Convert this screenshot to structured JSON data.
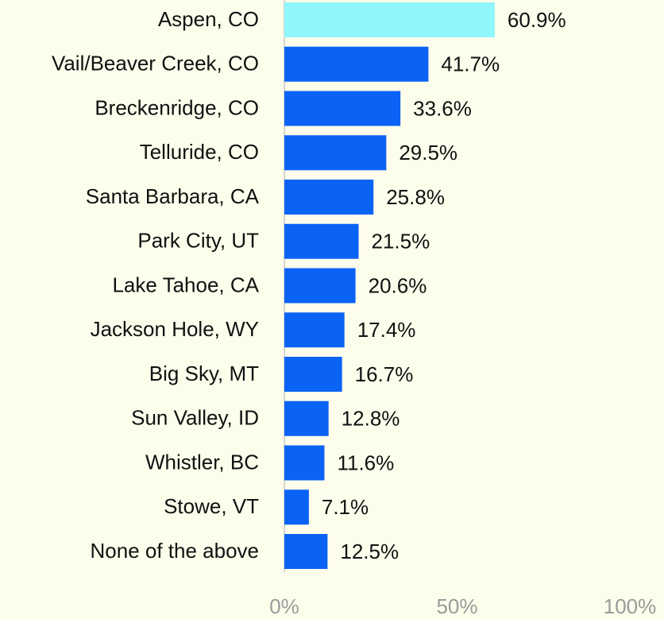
{
  "chart_data": {
    "type": "bar",
    "orientation": "horizontal",
    "categories": [
      "Aspen, CO",
      "Vail/Beaver Creek, CO",
      "Breckenridge, CO",
      "Telluride, CO",
      "Santa Barbara, CA",
      "Park City, UT",
      "Lake Tahoe, CA",
      "Jackson Hole, WY",
      "Big Sky, MT",
      "Sun Valley, ID",
      "Whistler, BC",
      "Stowe, VT",
      "None of the above"
    ],
    "values": [
      60.9,
      41.7,
      33.6,
      29.5,
      25.8,
      21.5,
      20.6,
      17.4,
      16.7,
      12.8,
      11.6,
      7.1,
      12.5
    ],
    "value_labels": [
      "60.9%",
      "41.7%",
      "33.6%",
      "29.5%",
      "25.8%",
      "21.5%",
      "20.6%",
      "17.4%",
      "16.7%",
      "12.8%",
      "11.6%",
      "7.1%",
      "12.5%"
    ],
    "colors": [
      "#8ff6fb",
      "#0a63f5",
      "#0a63f5",
      "#0a63f5",
      "#0a63f5",
      "#0a63f5",
      "#0a63f5",
      "#0a63f5",
      "#0a63f5",
      "#0a63f5",
      "#0a63f5",
      "#0a63f5",
      "#0a63f5"
    ],
    "xlim": [
      0,
      100
    ],
    "xticks": [
      {
        "value": 0,
        "label": "0%"
      },
      {
        "value": 50,
        "label": "50%"
      },
      {
        "value": 100,
        "label": "100%"
      }
    ]
  }
}
